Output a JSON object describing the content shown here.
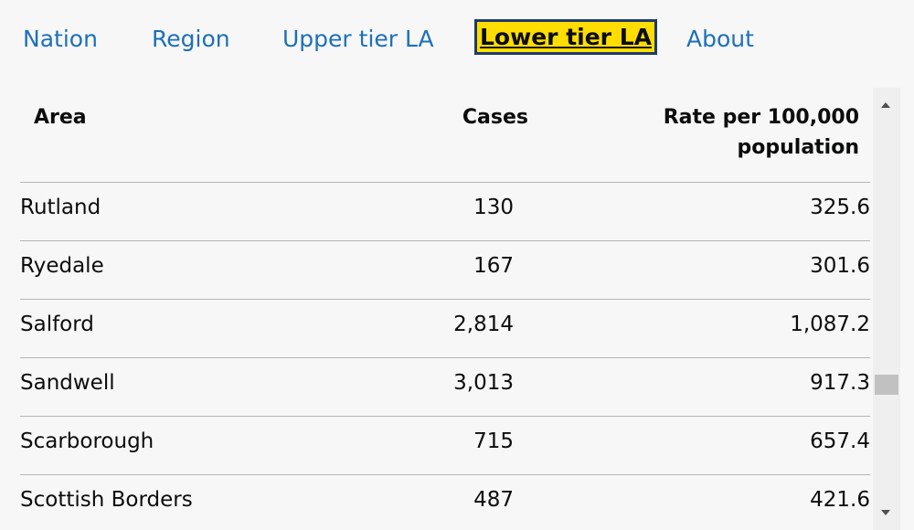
{
  "tabs": [
    "Nation",
    "Region",
    "Upper tier LA",
    "Lower tier LA",
    "About"
  ],
  "active_tab": 3,
  "table": {
    "headers": [
      "Area",
      "Cases",
      "Rate per 100,000 population"
    ],
    "rows": [
      [
        "Rutland",
        "130",
        "325.6"
      ],
      [
        "Ryedale",
        "167",
        "301.6"
      ],
      [
        "Salford",
        "2,814",
        "1,087.2"
      ],
      [
        "Sandwell",
        "3,013",
        "917.3"
      ],
      [
        "Scarborough",
        "715",
        "657.4"
      ],
      [
        "Scottish Borders",
        "487",
        "421.6"
      ]
    ]
  }
}
